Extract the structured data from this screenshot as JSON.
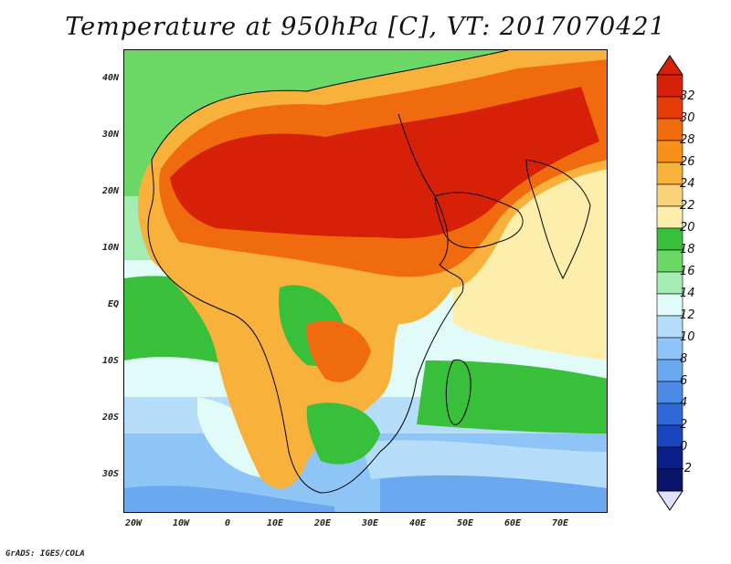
{
  "title": "Temperature at 950hPa [C], VT: 2017070421",
  "credit": "GrADS: IGES/COLA",
  "lat_labels": [
    "40N",
    "30N",
    "20N",
    "10N",
    "EQ",
    "10S",
    "20S",
    "30S"
  ],
  "lon_labels": [
    "20W",
    "10W",
    "0",
    "10E",
    "20E",
    "30E",
    "40E",
    "50E",
    "60E",
    "70E"
  ],
  "colorbar": {
    "labels": [
      "32",
      "30",
      "28",
      "26",
      "24",
      "22",
      "20",
      "18",
      "16",
      "14",
      "12",
      "10",
      "8",
      "6",
      "4",
      "2",
      "0",
      "-2"
    ],
    "colors": [
      "#d62008",
      "#e63c0a",
      "#f06a0e",
      "#f5901a",
      "#f8b23c",
      "#fbd27c",
      "#fdeeac",
      "#39c03a",
      "#6bd866",
      "#a4ecb2",
      "#e0fbf8",
      "#b5dcf8",
      "#8ec4f6",
      "#6aa8ef",
      "#4c8ae6",
      "#2f69d8",
      "#1a46c0",
      "#0b1f8a",
      "#0a1466"
    ],
    "over_color": "#d62008",
    "under_color": "#e0e0ff"
  }
}
